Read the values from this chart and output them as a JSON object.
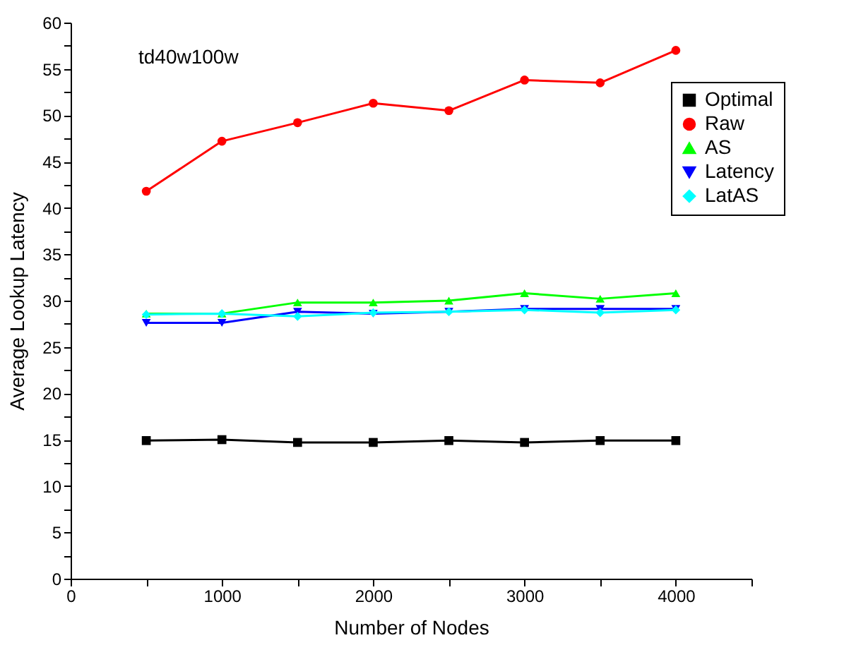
{
  "chart_data": {
    "type": "line",
    "xlabel": "Number of Nodes",
    "ylabel": "Average Lookup Latency",
    "annotations": [
      "td40w100w"
    ],
    "x": [
      500,
      1000,
      1500,
      2000,
      2500,
      3000,
      3500,
      4000
    ],
    "series": [
      {
        "name": "Optimal",
        "color": "#000000",
        "marker": "square",
        "values": [
          14.9,
          15.0,
          14.7,
          14.7,
          14.9,
          14.7,
          14.9,
          14.9
        ]
      },
      {
        "name": "Raw",
        "color": "#ff0000",
        "marker": "circle",
        "values": [
          41.8,
          47.2,
          49.2,
          51.3,
          50.5,
          53.8,
          53.5,
          57.0
        ]
      },
      {
        "name": "AS",
        "color": "#00ff00",
        "marker": "triangle",
        "values": [
          28.6,
          28.6,
          29.8,
          29.8,
          30.0,
          30.8,
          30.2,
          30.8
        ]
      },
      {
        "name": "Latency",
        "color": "#0000ff",
        "marker": "triangle-down",
        "values": [
          27.6,
          27.6,
          28.8,
          28.6,
          28.8,
          29.1,
          29.1,
          29.1
        ]
      },
      {
        "name": "LatAS",
        "color": "#00ffff",
        "marker": "diamond",
        "values": [
          28.5,
          28.6,
          28.3,
          28.7,
          28.8,
          29.0,
          28.7,
          29.0
        ]
      }
    ],
    "xlim": [
      0,
      4500
    ],
    "xticks": [
      0,
      {
        "value": 500,
        "label": null
      },
      1000,
      {
        "value": 1500,
        "label": null
      },
      2000,
      {
        "value": 2500,
        "label": null
      },
      3000,
      {
        "value": 3500,
        "label": null
      },
      4000,
      {
        "value": 4500,
        "label": null
      }
    ],
    "ylim": [
      0,
      60
    ],
    "yticks": [
      0,
      {
        "value": 2.5,
        "label": null
      },
      5,
      {
        "value": 7.5,
        "label": null
      },
      10,
      {
        "value": 12.5,
        "label": null
      },
      15,
      {
        "value": 17.5,
        "label": null
      },
      20,
      {
        "value": 22.5,
        "label": null
      },
      25,
      {
        "value": 27.5,
        "label": null
      },
      30,
      {
        "value": 32.5,
        "label": null
      },
      35,
      {
        "value": 37.5,
        "label": null
      },
      40,
      {
        "value": 42.5,
        "label": null
      },
      45,
      {
        "value": 47.5,
        "label": null
      },
      50,
      {
        "value": 52.5,
        "label": null
      },
      55,
      {
        "value": 57.5,
        "label": null
      },
      60
    ],
    "legend": "top right",
    "grid": false,
    "line_style": "solid"
  }
}
